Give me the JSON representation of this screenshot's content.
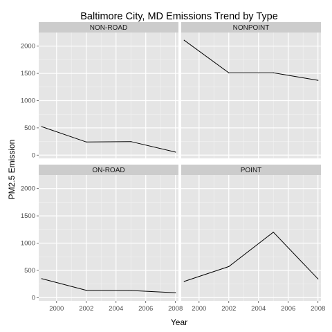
{
  "chart_data": {
    "type": "line",
    "title": "Baltimore City, MD Emissions Trend by Type",
    "xlabel": "Year",
    "ylabel": "PM2.5 Emission",
    "xlim": [
      1998.8,
      2008.2
    ],
    "ylim": [
      -60,
      2250
    ],
    "x_ticks": [
      2000,
      2002,
      2004,
      2006,
      2008
    ],
    "y_ticks": [
      0,
      500,
      1000,
      1500,
      2000
    ],
    "grid": true,
    "colors": {
      "panel_bg": "#e5e5e5",
      "strip_bg": "#cccccc",
      "grid": "#ffffff",
      "line": "#000000"
    },
    "panels": [
      {
        "name": "NON-ROAD",
        "x": [
          1999,
          2002,
          2005,
          2008
        ],
        "values": [
          522,
          241,
          248,
          55
        ]
      },
      {
        "name": "NONPOINT",
        "x": [
          1999,
          2002,
          2005,
          2008
        ],
        "values": [
          2108,
          1510,
          1510,
          1373
        ]
      },
      {
        "name": "ON-ROAD",
        "x": [
          1999,
          2002,
          2005,
          2008
        ],
        "values": [
          347,
          134,
          130,
          88
        ]
      },
      {
        "name": "POINT",
        "x": [
          1999,
          2002,
          2005,
          2008
        ],
        "values": [
          297,
          570,
          1200,
          344
        ]
      }
    ]
  }
}
